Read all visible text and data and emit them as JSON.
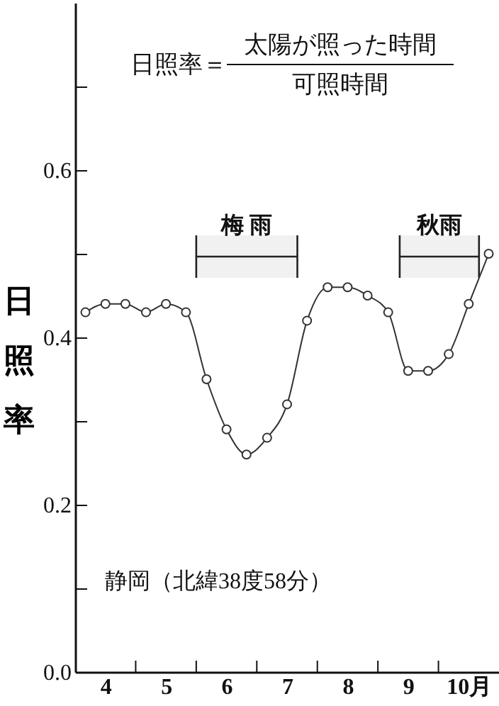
{
  "chart_data": {
    "type": "line",
    "ylabel": "日照率",
    "annotations": [
      "日照率＝",
      "太陽が照った時間",
      "可照時間",
      "静岡（北緯38度58分）"
    ],
    "x": [
      4.17,
      4.5,
      4.83,
      5.17,
      5.5,
      5.83,
      6.17,
      6.5,
      6.83,
      7.17,
      7.5,
      7.83,
      8.17,
      8.5,
      8.83,
      9.17,
      9.5,
      9.83,
      10.17,
      10.5,
      10.83
    ],
    "series": [
      {
        "color": "#333333",
        "values": [
          0.43,
          0.44,
          0.44,
          0.43,
          0.44,
          0.43,
          0.35,
          0.29,
          0.26,
          0.28,
          0.32,
          0.42,
          0.46,
          0.46,
          0.45,
          0.43,
          0.36,
          0.36,
          0.38,
          0.44,
          0.5
        ]
      }
    ],
    "marker": "circle",
    "line_style": "solid",
    "xlim": [
      4,
      11
    ],
    "xticks": [
      {
        "value": 4.5,
        "label": "4"
      },
      {
        "value": 5.5,
        "label": "5"
      },
      {
        "value": 6.5,
        "label": "6"
      },
      {
        "value": 7.5,
        "label": "7"
      },
      {
        "value": 8.5,
        "label": "8"
      },
      {
        "value": 9.5,
        "label": "9"
      },
      {
        "value": 10.5,
        "label": "10月"
      },
      {
        "value": 5,
        "label": null
      },
      {
        "value": 6,
        "label": null
      },
      {
        "value": 7,
        "label": null
      },
      {
        "value": 8,
        "label": null
      },
      {
        "value": 9,
        "label": null
      },
      {
        "value": 10,
        "label": null
      }
    ],
    "ylim": [
      0,
      0.8
    ],
    "yticks": [
      {
        "value": 0,
        "label": "0.0"
      },
      {
        "value": 0.1,
        "label": null
      },
      {
        "value": 0.2,
        "label": "0.2"
      },
      {
        "value": 0.3,
        "label": null
      },
      {
        "value": 0.4,
        "label": "0.4"
      },
      {
        "value": 0.5,
        "label": null
      },
      {
        "value": 0.6,
        "label": "0.6"
      },
      {
        "value": 0.7,
        "label": null
      }
    ],
    "bands": [
      {
        "axis": "x",
        "from": 6,
        "to": 7.67,
        "label": "梅 雨"
      },
      {
        "axis": "x",
        "from": 9.36,
        "to": 10.67,
        "label": "秋雨"
      }
    ]
  }
}
